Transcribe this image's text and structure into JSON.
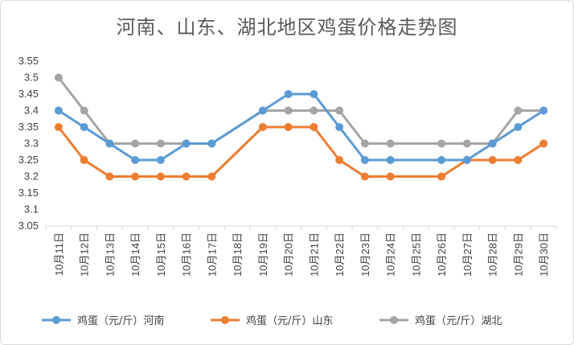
{
  "chart_data": {
    "type": "line",
    "title": "河南、山东、湖北地区鸡蛋价格走势图",
    "categories": [
      "10月11日",
      "10月12日",
      "10月13日",
      "10月14日",
      "10月15日",
      "10月16日",
      "10月17日",
      "10月18日",
      "10月19日",
      "10月20日",
      "10月21日",
      "10月22日",
      "10月23日",
      "10月24日",
      "10月25日",
      "10月26日",
      "10月27日",
      "10月28日",
      "10月29日",
      "10月30日"
    ],
    "ylim": [
      3.05,
      3.55
    ],
    "yticks": [
      "3.05",
      "3.1",
      "3.15",
      "3.2",
      "3.25",
      "3.3",
      "3.35",
      "3.4",
      "3.45",
      "3.5",
      "3.55"
    ],
    "grid": false,
    "legend_position": "bottom",
    "series": [
      {
        "name": "鸡蛋（元/斤）河南",
        "color": "#5b9bd5",
        "values": [
          3.4,
          3.35,
          3.3,
          3.25,
          3.25,
          3.3,
          3.3,
          null,
          3.4,
          3.45,
          3.45,
          3.35,
          3.25,
          3.25,
          null,
          3.25,
          3.25,
          3.3,
          3.35,
          3.4
        ]
      },
      {
        "name": "鸡蛋（元/斤）山东",
        "color": "#ed7d31",
        "values": [
          3.35,
          3.25,
          3.2,
          3.2,
          3.2,
          3.2,
          3.2,
          null,
          3.35,
          3.35,
          3.35,
          3.25,
          3.2,
          3.2,
          null,
          3.2,
          3.25,
          3.25,
          3.25,
          3.3
        ]
      },
      {
        "name": "鸡蛋（元/斤）湖北",
        "color": "#a5a5a5",
        "values": [
          3.5,
          3.4,
          3.3,
          3.3,
          3.3,
          3.3,
          3.3,
          null,
          3.4,
          3.4,
          3.4,
          3.4,
          3.3,
          3.3,
          null,
          3.3,
          3.3,
          3.3,
          3.4,
          3.4
        ]
      }
    ]
  }
}
